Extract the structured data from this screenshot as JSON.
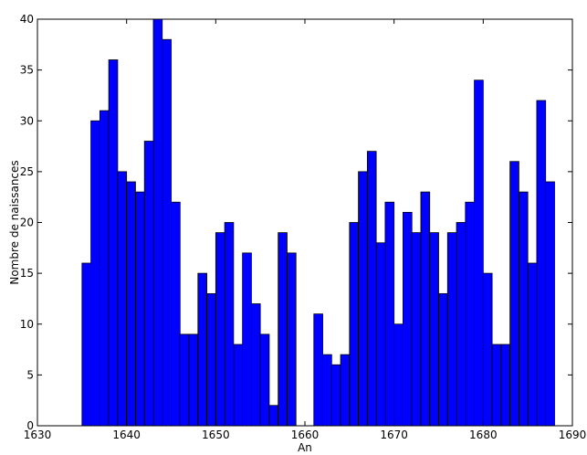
{
  "chart_data": {
    "type": "bar",
    "title": "",
    "xlabel": "An",
    "ylabel": "Nombre de naissances",
    "xlim": [
      1630,
      1690
    ],
    "ylim": [
      0,
      40
    ],
    "xticks": [
      1630,
      1640,
      1650,
      1660,
      1670,
      1680,
      1690
    ],
    "yticks": [
      0,
      5,
      10,
      15,
      20,
      25,
      30,
      35,
      40
    ],
    "grid": false,
    "bar_color": "#0000ff",
    "edge_color": "#000000",
    "x": [
      1635,
      1636,
      1637,
      1638,
      1639,
      1640,
      1641,
      1642,
      1643,
      1644,
      1645,
      1646,
      1647,
      1648,
      1649,
      1650,
      1651,
      1652,
      1653,
      1654,
      1655,
      1656,
      1657,
      1658,
      1659,
      1660,
      1661,
      1662,
      1663,
      1664,
      1665,
      1666,
      1667,
      1668,
      1669,
      1670,
      1671,
      1672,
      1673,
      1674,
      1675,
      1676,
      1677,
      1678,
      1679,
      1680,
      1681,
      1682,
      1683,
      1684,
      1685,
      1686,
      1687
    ],
    "values": [
      16,
      30,
      31,
      36,
      25,
      24,
      23,
      28,
      40,
      38,
      22,
      9,
      9,
      15,
      13,
      19,
      20,
      8,
      17,
      12,
      9,
      2,
      19,
      17,
      0,
      0,
      11,
      7,
      6,
      7,
      20,
      25,
      27,
      18,
      22,
      10,
      21,
      19,
      23,
      19,
      13,
      19,
      20,
      22,
      34,
      15,
      8,
      8,
      26,
      23,
      16,
      32,
      24
    ]
  }
}
